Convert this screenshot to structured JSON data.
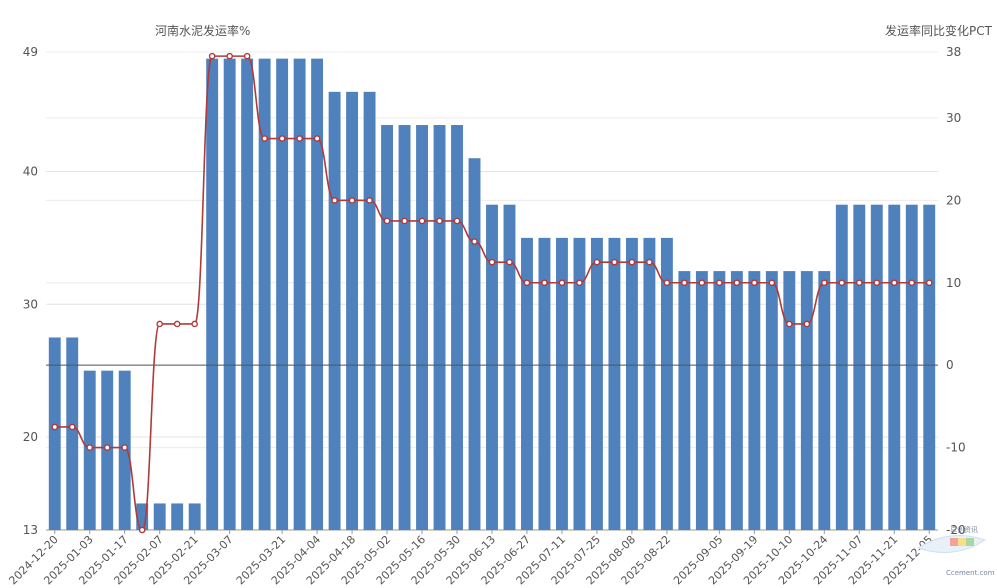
{
  "chart_data": {
    "type": "bar",
    "left_axis_title": "河南水泥发运率%",
    "right_axis_title": "发运率同比变化PCT",
    "left_axis": {
      "min": 13,
      "max": 49,
      "ticks": [
        13,
        20,
        30,
        40,
        49
      ]
    },
    "right_axis": {
      "min": -20,
      "max": 38,
      "ticks": [
        -20,
        -10,
        0,
        10,
        20,
        30,
        38
      ]
    },
    "x_labels": [
      "2024-12-20",
      "2025-01-03",
      "2025-01-17",
      "2025-02-07",
      "2025-02-21",
      "2025-03-07",
      "2025-03-21",
      "2025-04-04",
      "2025-04-18",
      "2025-05-02",
      "2025-05-16",
      "2025-05-30",
      "2025-06-13",
      "2025-06-27",
      "2025-07-11",
      "2025-07-25",
      "2025-08-08",
      "2025-08-22",
      "2025-09-05",
      "2025-09-19",
      "2025-10-10",
      "2025-10-24",
      "2025-11-07",
      "2025-11-21",
      "2025-12-05"
    ],
    "bar_series": {
      "axis": "left",
      "color": "#4f81bd",
      "values": [
        27.5,
        27.5,
        25,
        25,
        25,
        15,
        15,
        15,
        15,
        48.5,
        48.5,
        48.5,
        48.5,
        48.5,
        48.5,
        48.5,
        46,
        46,
        46,
        43.5,
        43.5,
        43.5,
        43.5,
        43.5,
        41,
        37.5,
        37.5,
        35,
        35,
        35,
        35,
        35,
        35,
        35,
        35,
        35,
        32.5,
        32.5,
        32.5,
        32.5,
        32.5,
        32.5,
        32.5,
        32.5,
        32.5,
        37.5,
        37.5,
        37.5,
        37.5,
        37.5,
        37.5
      ]
    },
    "line_series": {
      "axis": "right",
      "color": "#b03a3a",
      "values": [
        -7.5,
        -7.5,
        -10,
        -10,
        -10,
        -20,
        5,
        5,
        5,
        37.5,
        37.5,
        37.5,
        27.5,
        27.5,
        27.5,
        27.5,
        20,
        20,
        20,
        17.5,
        17.5,
        17.5,
        17.5,
        17.5,
        15,
        12.5,
        12.5,
        10,
        10,
        10,
        10,
        12.5,
        12.5,
        12.5,
        12.5,
        10,
        10,
        10,
        10,
        10,
        10,
        10,
        5,
        5,
        10,
        10,
        10,
        10,
        10,
        10,
        10
      ]
    },
    "grid": true,
    "legend": "none"
  },
  "watermark": {
    "text": "卓创资讯",
    "subtext": "Ccement.com"
  }
}
